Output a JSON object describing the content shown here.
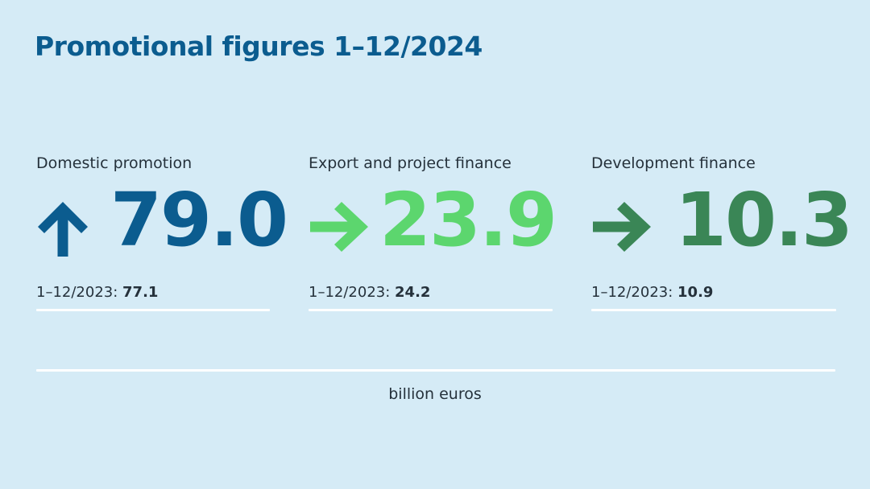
{
  "title": "Promotional figures 1–12/2024",
  "prev_period_label": "1–12/2023: ",
  "unit": "billion euros",
  "colors": {
    "background": "#d5ebf6",
    "title": "#0b5c8f",
    "domestic": "#0b5c8f",
    "export": "#5cd66e",
    "development": "#3a8656"
  },
  "metrics": [
    {
      "label": "Domestic promotion",
      "value": "79.0",
      "previous": "77.1",
      "trend": "up",
      "icon": "arrow-up-icon"
    },
    {
      "label": "Export and project finance",
      "value": "23.9",
      "previous": "24.2",
      "trend": "flat",
      "icon": "arrow-right-icon"
    },
    {
      "label": "Development finance",
      "value": "10.3",
      "previous": "10.9",
      "trend": "flat",
      "icon": "arrow-right-icon"
    }
  ]
}
